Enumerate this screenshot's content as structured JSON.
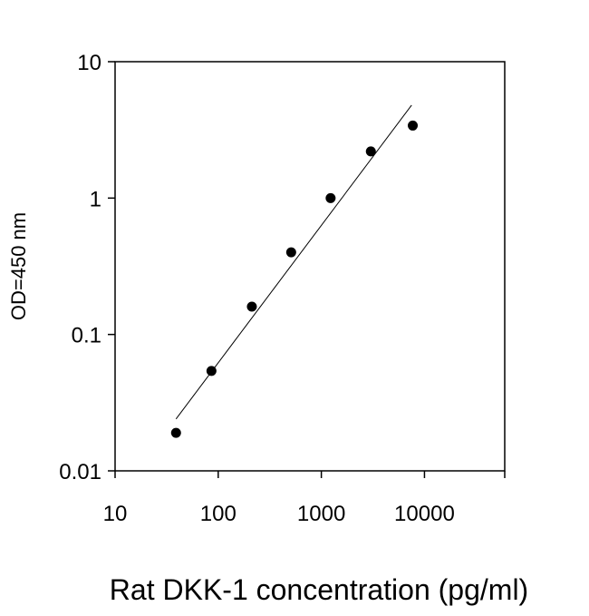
{
  "chart_data": {
    "type": "scatter",
    "title": "",
    "xlabel": "Rat DKK-1 concentration (pg/ml)",
    "ylabel": "OD=450 nm",
    "x_scale": "log",
    "y_scale": "log",
    "xlim": [
      10,
      60000
    ],
    "ylim": [
      0.01,
      10
    ],
    "x_ticks": [
      {
        "value": 10,
        "label": "10"
      },
      {
        "value": 100,
        "label": "100"
      },
      {
        "value": 1000,
        "label": "1000"
      },
      {
        "value": 10000,
        "label": "10000"
      }
    ],
    "y_ticks": [
      {
        "value": 0.01,
        "label": "0.01"
      },
      {
        "value": 0.1,
        "label": "0.1"
      },
      {
        "value": 1,
        "label": "1"
      },
      {
        "value": 10,
        "label": "10"
      }
    ],
    "grid": false,
    "legend": "none",
    "points": [
      {
        "x": 39,
        "y": 0.019
      },
      {
        "x": 86,
        "y": 0.054
      },
      {
        "x": 212,
        "y": 0.16
      },
      {
        "x": 510,
        "y": 0.4
      },
      {
        "x": 1230,
        "y": 1.0
      },
      {
        "x": 3020,
        "y": 2.2
      },
      {
        "x": 7700,
        "y": 3.4
      }
    ],
    "fit_line": [
      {
        "x": 39,
        "y": 0.024
      },
      {
        "x": 7500,
        "y": 4.8
      }
    ],
    "colors": {
      "points": "#000000",
      "line": "#000000",
      "axes": "#000000"
    }
  }
}
